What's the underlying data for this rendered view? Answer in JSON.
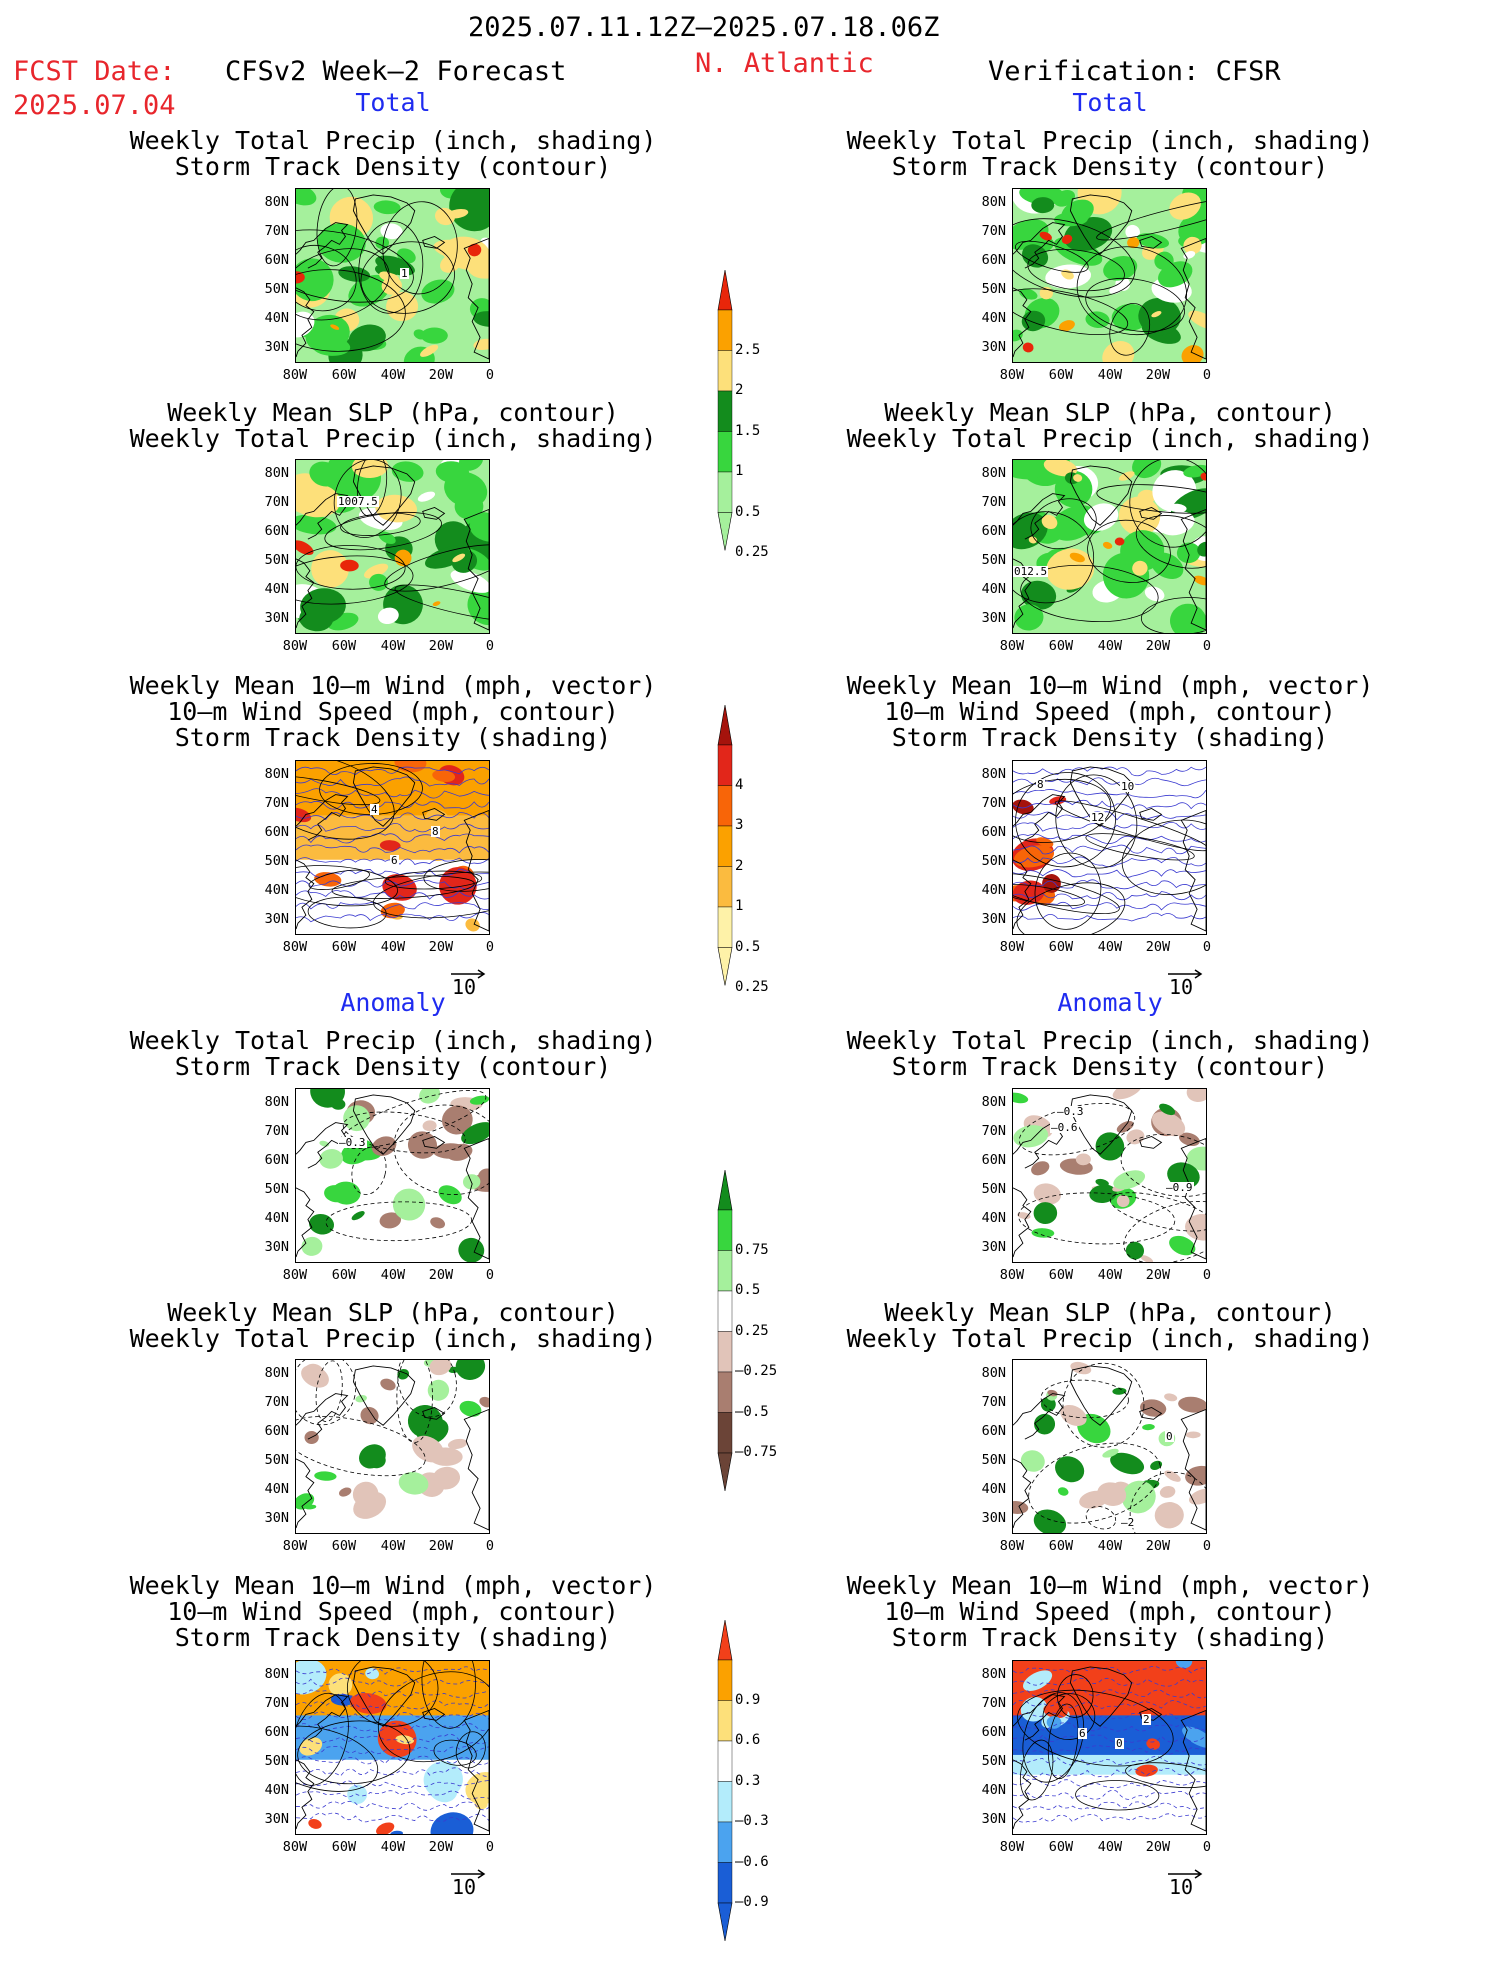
{
  "header": {
    "period": "2025.07.11.12Z–2025.07.18.06Z",
    "fcst_label": "FCST Date:",
    "fcst_date": "2025.07.04",
    "model": "CFSv2 Week–2 Forecast",
    "region": "N. Atlantic",
    "verification": "Verification: CFSR"
  },
  "sections": {
    "total": "Total",
    "anomaly": "Anomaly"
  },
  "titles": {
    "precip_storm": [
      "Weekly Total Precip (inch, shading)",
      "Storm Track Density (contour)"
    ],
    "slp_precip": [
      "Weekly Mean SLP (hPa, contour)",
      "Weekly Total Precip (inch, shading)"
    ],
    "wind_storm": [
      "Weekly Mean 10–m Wind (mph, vector)",
      "10–m Wind Speed (mph, contour)",
      "Storm Track Density (shading)"
    ]
  },
  "axes": {
    "lat_labels": [
      "80N",
      "70N",
      "60N",
      "50N",
      "40N",
      "30N"
    ],
    "lon_labels": [
      "80W",
      "60W",
      "40W",
      "20W",
      "0"
    ]
  },
  "vector_ref": "10",
  "contour_labels": {
    "fc_slp_total": "1007.5",
    "ver_slp_total": "012.5",
    "fc_storm_total": "1",
    "fc_precip_anom": "–0.3",
    "ver_precip_anom_a": "–0.3",
    "ver_precip_anom_b": "–0.6",
    "ver_precip_anom_c": "–0.9",
    "ver_slp_anom_a": "0",
    "ver_slp_anom_b": "–2",
    "fc_wind_total_a": "4",
    "fc_wind_total_b": "8",
    "fc_wind_total_c": "6",
    "ver_wind_total_a": "8",
    "ver_wind_total_b": "10",
    "ver_wind_total_c": "12",
    "ver_wind_anom_a": "2",
    "ver_wind_anom_b": "6",
    "ver_wind_anom_c": "0"
  },
  "colorbars": {
    "precip_total": {
      "labels": [
        "2.5",
        "2",
        "1.5",
        "1",
        "0.5",
        "0.25"
      ],
      "colors": [
        "#e8260a",
        "#fba100",
        "#fde07a",
        "#138c1d",
        "#38d63e",
        "#a5f09c"
      ]
    },
    "storm_total": {
      "labels": [
        "4",
        "3",
        "2",
        "1",
        "0.5",
        "0.25"
      ],
      "colors": [
        "#a5130c",
        "#e2261a",
        "#f86508",
        "#fba100",
        "#fbbb3f",
        "#fef2a8"
      ]
    },
    "precip_anom": {
      "labels": [
        "0.75",
        "0.5",
        "0.25",
        "–0.25",
        "–0.5",
        "–0.75"
      ],
      "colors": [
        "#138c1d",
        "#38d63e",
        "#a5f09c",
        "#ffffff",
        "#e1c4b9",
        "#a97e70",
        "#6b4437"
      ]
    },
    "storm_anom": {
      "labels": [
        "0.9",
        "0.6",
        "0.3",
        "–0.3",
        "–0.6",
        "–0.9"
      ],
      "colors": [
        "#f2401a",
        "#fba100",
        "#fde07a",
        "#ffffff",
        "#b3ecfb",
        "#4ba3ef",
        "#1a5ed6"
      ]
    }
  }
}
